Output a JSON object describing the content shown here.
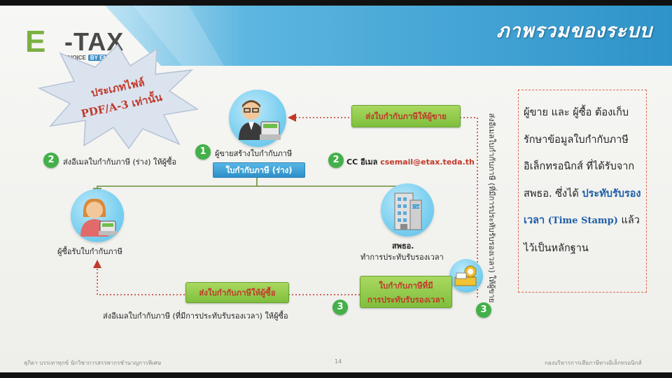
{
  "title": "ภาพรวมของระบบ",
  "logo": {
    "e": "E",
    "tax": "-TAX",
    "invoice": "INVOICE",
    "by_email": "BY EMAIL"
  },
  "callout": {
    "line1": "ประเภทไฟล์",
    "line2": "PDF/A-3 เท่านั้น"
  },
  "seller": {
    "label": "ผู้ขายสร้างใบกำกับภาษี"
  },
  "buyer": {
    "label": "ผู้ซื้อรับใบกำกับภาษี"
  },
  "etda": {
    "badge": "ETDA",
    "label_line1": "สพธอ.",
    "label_line2": "ทำการประทับรับรองเวลา"
  },
  "steps": {
    "step1": {
      "number": "1"
    },
    "step2_left": {
      "number": "2",
      "text": "ส่งอีเมลใบกำกับภาษี (ร่าง) ให้ผู้ซื้อ"
    },
    "step2_right": {
      "number": "2",
      "text": "CC อีเมล",
      "email": "csemail@etax.teda.th"
    },
    "step3_left": {
      "number": "3"
    },
    "step3_right": {
      "number": "3"
    }
  },
  "boxes": {
    "draft_invoice": "ใบกำกับภาษี (ร่าง)",
    "send_to_seller": "ส่งใบกำกับภาษีให้ผู้ขาย",
    "send_to_buyer": "ส่งใบกำกับภาษีให้ผู้ซื้อ",
    "stamped_line1": "ใบกำกับภาษีที่มี",
    "stamped_line2": "การประทับรับรองเวลา"
  },
  "bottom_caption": "ส่งอีเมลใบกำกับภาษี (ที่มีการประทับรับรองเวลา) ให้ผู้ซื้อ",
  "vertical_caption": "ส่งอีเมลใบกำกับภาษี (ที่มีการประทับรับรองเวลา) ให้ผู้ขาย",
  "note": {
    "part1": "ผู้ขาย และ ผู้ซื้อ ต้องเก็บรักษาข้อมูลใบกำกับภาษีอิเล็กทรอนิกส์ ที่ได้รับจาก สพธอ. ซึ่งได้",
    "highlight": "ประทับรับรองเวลา",
    "stamp": "(Time Stamp)",
    "part2": "แล้วไว้เป็นหลักฐาน"
  },
  "footer": {
    "author": "สุภิดา บรรเทาทุกข์   นักวิชาการสรรพากรชำนาญการพิเศษ",
    "page": "14",
    "org": "กองบริหารการเสียภาษีทางอิเล็กทรอนิกส์"
  },
  "colors": {
    "title_band": "#3a9fd1",
    "green": "#7fbf3d",
    "blue": "#2d8fc8",
    "red": "#c0392b",
    "step_green": "#43b049"
  }
}
